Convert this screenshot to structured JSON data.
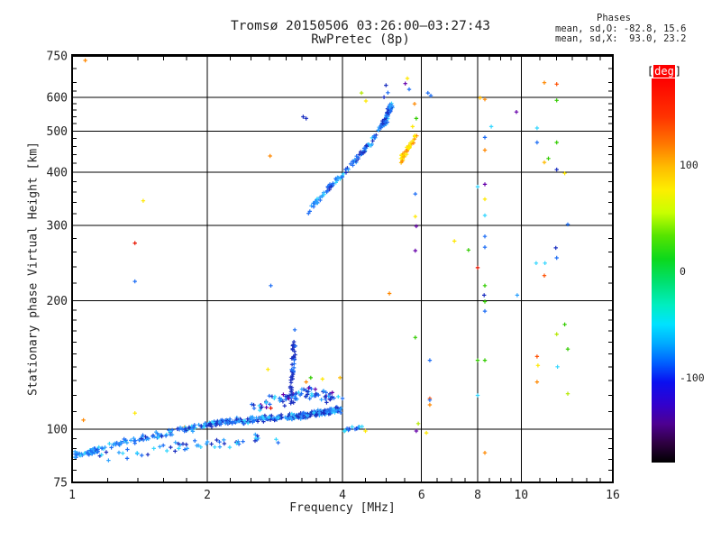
{
  "header": {
    "title": "Tromsø 20150506 03:26:00–03:27:43",
    "subtitle": "RwPretec (8p)"
  },
  "phases": {
    "header": "Phases",
    "o_line": "mean, sd,O: -82.8, 15.6",
    "x_line": "mean, sd,X:  93.0, 23.2"
  },
  "chart_data": {
    "type": "scatter",
    "title": "Tromsø 20150506 03:26:00–03:27:43",
    "subtitle": "RwPretec (8p)",
    "xlabel": "Frequency [MHz]",
    "ylabel": "Stationary phase Virtual Height [km]",
    "x_scale": "log",
    "y_scale": "log",
    "xlim": [
      1,
      16
    ],
    "ylim": [
      75,
      750
    ],
    "x_major_ticks": [
      1,
      2,
      4,
      6,
      8,
      10,
      16
    ],
    "x_minor_ticks": [
      1.2,
      1.4,
      1.6,
      1.8,
      2.25,
      2.5,
      2.75,
      3,
      3.25,
      3.5,
      3.75,
      4.5,
      5,
      5.5,
      6.5,
      7,
      7.5,
      8.5,
      9,
      9.5,
      11,
      12,
      13,
      14,
      15
    ],
    "y_major_ticks": [
      75,
      100,
      200,
      300,
      400,
      500,
      600,
      750
    ],
    "y_minor_ticks": [
      80,
      85,
      90,
      95,
      110,
      120,
      130,
      140,
      150,
      160,
      170,
      180,
      190,
      220,
      240,
      260,
      280,
      320,
      340,
      360,
      380,
      420,
      440,
      460,
      480,
      520,
      540,
      560,
      580,
      620,
      650,
      700
    ],
    "x_gridlines": [
      2,
      4,
      6,
      8,
      10
    ],
    "y_gridlines": [
      100,
      200,
      300,
      400,
      500,
      600
    ],
    "grid": true,
    "colorbar": {
      "bracket_l": "[",
      "label": "deg",
      "bracket_r": "]",
      "unit": "deg",
      "range": [
        -180,
        180
      ],
      "ticks": [
        {
          "label": "100",
          "value": 100
        },
        {
          "label": "0",
          "value": 0
        },
        {
          "label": "-100",
          "value": -100
        }
      ],
      "stops": [
        {
          "pos": 0.0,
          "color": "#fe0000"
        },
        {
          "pos": 0.1,
          "color": "#ff3300"
        },
        {
          "pos": 0.17,
          "color": "#ff7700"
        },
        {
          "pos": 0.23,
          "color": "#ffbb00"
        },
        {
          "pos": 0.29,
          "color": "#fdee00"
        },
        {
          "pos": 0.35,
          "color": "#c8ff00"
        },
        {
          "pos": 0.41,
          "color": "#55e400"
        },
        {
          "pos": 0.47,
          "color": "#0cd81c"
        },
        {
          "pos": 0.53,
          "color": "#00e070"
        },
        {
          "pos": 0.59,
          "color": "#00eec0"
        },
        {
          "pos": 0.64,
          "color": "#00e2ff"
        },
        {
          "pos": 0.69,
          "color": "#00aaff"
        },
        {
          "pos": 0.74,
          "color": "#0060ff"
        },
        {
          "pos": 0.79,
          "color": "#0a10f0"
        },
        {
          "pos": 0.85,
          "color": "#3300cc"
        },
        {
          "pos": 0.9,
          "color": "#4d0090"
        },
        {
          "pos": 0.95,
          "color": "#2e0040"
        },
        {
          "pos": 1.0,
          "color": "#000000"
        }
      ]
    },
    "palette": {
      "b1": "#1e6ef5",
      "b2": "#2da2ff",
      "b3": "#1b2fc0",
      "cy": "#33d6ff",
      "pu": "#6600aa",
      "gr": "#33cc00",
      "yg": "#b5e800",
      "ye": "#ffe800",
      "go": "#ffbb00",
      "or": "#ff8800",
      "ro": "#ff4f00",
      "re": "#e81500"
    },
    "seed": 7,
    "clusters": [
      {
        "name": "e-start-knot",
        "n": 50,
        "path": [
          [
            1.0,
            87
          ],
          [
            1.08,
            88
          ],
          [
            1.14,
            89
          ]
        ],
        "jitter": [
          3,
          4
        ],
        "colors": [
          "b2",
          "b2",
          "b1",
          "cy",
          "b1"
        ]
      },
      {
        "name": "e-band-low",
        "n": 85,
        "path": [
          [
            1.1,
            89
          ],
          [
            1.3,
            93
          ],
          [
            1.5,
            96
          ],
          [
            1.7,
            99
          ],
          [
            1.9,
            101
          ]
        ],
        "jitter": [
          6,
          4
        ],
        "colors": [
          "b1",
          "b2",
          "b3",
          "b2",
          "cy",
          "b1"
        ]
      },
      {
        "name": "e-band-main",
        "n": 300,
        "path": [
          [
            1.95,
            102
          ],
          [
            2.2,
            104
          ],
          [
            2.5,
            105
          ],
          [
            2.8,
            106
          ],
          [
            3.1,
            107
          ],
          [
            3.4,
            108
          ],
          [
            3.7,
            110
          ],
          [
            3.95,
            111
          ]
        ],
        "jitter": [
          5,
          4
        ],
        "colors": [
          "b1",
          "b2",
          "b2",
          "b3",
          "cy",
          "b1",
          "b3"
        ]
      },
      {
        "name": "e-below-scatter",
        "n": 55,
        "path": [
          [
            1.1,
            86
          ],
          [
            1.6,
            90
          ],
          [
            2.2,
            93
          ],
          [
            2.9,
            96
          ]
        ],
        "jitter": [
          14,
          7
        ],
        "colors": [
          "b1",
          "b3",
          "b2",
          "cy"
        ]
      },
      {
        "name": "e-above-spread",
        "n": 85,
        "path": [
          [
            2.5,
            113
          ],
          [
            2.9,
            117
          ],
          [
            3.2,
            120
          ],
          [
            3.5,
            122
          ],
          [
            3.8,
            118
          ]
        ],
        "jitter": [
          10,
          8
        ],
        "colors": [
          "b3",
          "b1",
          "b2",
          "b3",
          "pu",
          "cy",
          "b1"
        ]
      },
      {
        "name": "spread-e-column",
        "n": 42,
        "path": [
          [
            3.07,
            115
          ],
          [
            3.09,
            130
          ],
          [
            3.11,
            145
          ],
          [
            3.12,
            158
          ],
          [
            3.13,
            170
          ]
        ],
        "jitter": [
          2,
          4
        ],
        "colors": [
          "b3",
          "b3",
          "b1",
          "b3"
        ]
      },
      {
        "name": "f-trace-o-mode",
        "n": 130,
        "path": [
          [
            3.33,
            320
          ],
          [
            3.5,
            342
          ],
          [
            3.68,
            362
          ],
          [
            3.85,
            380
          ],
          [
            4.02,
            397
          ],
          [
            4.2,
            417
          ],
          [
            4.38,
            440
          ],
          [
            4.55,
            462
          ],
          [
            4.7,
            482
          ],
          [
            4.85,
            505
          ],
          [
            4.97,
            528
          ],
          [
            5.07,
            552
          ],
          [
            5.14,
            575
          ]
        ],
        "jitter": [
          2.5,
          3
        ],
        "colors": [
          "b1",
          "b2",
          "b1",
          "b3",
          "cy",
          "b2",
          "b1"
        ]
      },
      {
        "name": "f-trace-top-knot",
        "n": 28,
        "path": [
          [
            4.95,
            520
          ],
          [
            5.02,
            540
          ],
          [
            5.08,
            558
          ],
          [
            5.12,
            572
          ]
        ],
        "jitter": [
          3,
          4
        ],
        "colors": [
          "b1",
          "b3",
          "b2",
          "b1"
        ]
      },
      {
        "name": "x-mode-cluster",
        "n": 34,
        "path": [
          [
            5.38,
            424
          ],
          [
            5.5,
            442
          ],
          [
            5.62,
            458
          ],
          [
            5.72,
            472
          ],
          [
            5.83,
            490
          ]
        ],
        "jitter": [
          2.5,
          3
        ],
        "colors": [
          "ye",
          "go",
          "ye",
          "go",
          "or",
          "ye"
        ]
      },
      {
        "name": "post-4mhz-tail",
        "n": 14,
        "path": [
          [
            4.02,
            99
          ],
          [
            4.15,
            100
          ],
          [
            4.3,
            101
          ],
          [
            4.45,
            102
          ]
        ],
        "jitter": [
          4,
          3
        ],
        "colors": [
          "b1",
          "b2",
          "cy",
          "b3"
        ]
      }
    ],
    "points": [
      [
        1.06,
        105,
        "or"
      ],
      [
        1.38,
        109,
        "ye"
      ],
      [
        1.78,
        101,
        "or"
      ],
      [
        1.07,
        732,
        "or"
      ],
      [
        2.76,
        437,
        "or"
      ],
      [
        1.44,
        343,
        "ye"
      ],
      [
        1.38,
        273,
        "re"
      ],
      [
        1.38,
        222,
        "b1"
      ],
      [
        2.77,
        217,
        "b1"
      ],
      [
        2.73,
        138,
        "ye"
      ],
      [
        2.77,
        112,
        "re"
      ],
      [
        3.32,
        129,
        "or"
      ],
      [
        3.4,
        132,
        "gr"
      ],
      [
        3.61,
        131,
        "ye"
      ],
      [
        3.48,
        124,
        "pu"
      ],
      [
        3.95,
        132,
        "go"
      ],
      [
        4.41,
        614,
        "yg"
      ],
      [
        4.51,
        588,
        "ye"
      ],
      [
        5.58,
        664,
        "ye"
      ],
      [
        5.52,
        646,
        "pu"
      ],
      [
        5.63,
        626,
        "b1"
      ],
      [
        6.2,
        614,
        "b1"
      ],
      [
        6.29,
        605,
        "b1"
      ],
      [
        5.79,
        579,
        "or"
      ],
      [
        5.84,
        535,
        "gr"
      ],
      [
        5.73,
        512,
        "ye"
      ],
      [
        5.81,
        356,
        "b1"
      ],
      [
        5.81,
        315,
        "ye"
      ],
      [
        5.84,
        299,
        "pu"
      ],
      [
        5.81,
        262,
        "pu"
      ],
      [
        5.81,
        164,
        "gr"
      ],
      [
        6.26,
        145,
        "b1"
      ],
      [
        6.26,
        118,
        "ro"
      ],
      [
        6.26,
        117,
        "b1"
      ],
      [
        6.26,
        114,
        "or"
      ],
      [
        5.09,
        208,
        "or"
      ],
      [
        8.3,
        593,
        "or"
      ],
      [
        8.1,
        598,
        "go"
      ],
      [
        8.3,
        483,
        "b1"
      ],
      [
        8.3,
        451,
        "or"
      ],
      [
        8.0,
        370,
        "cy"
      ],
      [
        8.3,
        375,
        "pu"
      ],
      [
        8.3,
        346,
        "ye"
      ],
      [
        8.3,
        317,
        "cy"
      ],
      [
        8.3,
        283,
        "b1"
      ],
      [
        8.3,
        267,
        "b1"
      ],
      [
        8.0,
        239,
        "re"
      ],
      [
        8.3,
        217,
        "gr"
      ],
      [
        8.27,
        206,
        "b3"
      ],
      [
        8.3,
        199,
        "gr"
      ],
      [
        8.3,
        189,
        "b1"
      ],
      [
        8.0,
        145,
        "gr"
      ],
      [
        8.3,
        145,
        "gr"
      ],
      [
        8.0,
        120,
        "cy"
      ],
      [
        8.3,
        88,
        "or"
      ],
      [
        7.1,
        276,
        "ye"
      ],
      [
        7.63,
        263,
        "gr"
      ],
      [
        8.58,
        512,
        "cy"
      ],
      [
        9.76,
        554,
        "pu"
      ],
      [
        10.85,
        508,
        "cy"
      ],
      [
        10.85,
        470,
        "b1"
      ],
      [
        11.26,
        649,
        "or"
      ],
      [
        12.0,
        644,
        "ro"
      ],
      [
        12.0,
        590,
        "gr"
      ],
      [
        12.0,
        470,
        "gr"
      ],
      [
        11.5,
        431,
        "gr"
      ],
      [
        11.26,
        422,
        "go"
      ],
      [
        12.0,
        406,
        "b3"
      ],
      [
        12.5,
        398,
        "ye"
      ],
      [
        12.7,
        302,
        "b1"
      ],
      [
        11.94,
        266,
        "b3"
      ],
      [
        12.0,
        252,
        "b1"
      ],
      [
        10.8,
        245,
        "cy"
      ],
      [
        11.3,
        245,
        "cy"
      ],
      [
        11.26,
        229,
        "ro"
      ],
      [
        9.8,
        206,
        "b2"
      ],
      [
        12.5,
        176,
        "gr"
      ],
      [
        12.0,
        167,
        "yg"
      ],
      [
        12.7,
        154,
        "gr"
      ],
      [
        10.85,
        148,
        "ro"
      ],
      [
        10.9,
        141,
        "ye"
      ],
      [
        12.05,
        140,
        "cy"
      ],
      [
        10.85,
        129,
        "or"
      ],
      [
        12.7,
        121,
        "yg"
      ],
      [
        4.0,
        118,
        "b1"
      ],
      [
        4.5,
        99,
        "ye"
      ],
      [
        4.04,
        99,
        "gr"
      ],
      [
        3.27,
        540,
        "b3"
      ],
      [
        3.32,
        535,
        "b3"
      ],
      [
        5.84,
        99,
        "pu"
      ],
      [
        6.15,
        98,
        "ye"
      ],
      [
        5.9,
        103,
        "yg"
      ],
      [
        5.0,
        640,
        "b3"
      ],
      [
        5.05,
        615,
        "b1"
      ],
      [
        4.95,
        600,
        "b3"
      ]
    ]
  }
}
